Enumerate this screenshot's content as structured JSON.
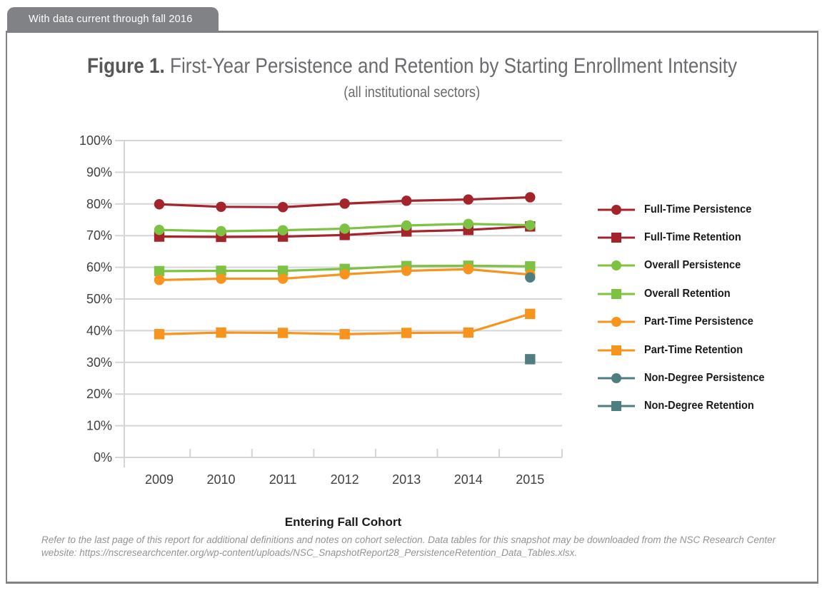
{
  "banner": {
    "text": "With data current through fall 2016"
  },
  "figure": {
    "label": "Figure 1.",
    "title": " First-Year Persistence and Retention by Starting Enrollment Intensity",
    "subtitle": "(all institutional sectors)"
  },
  "footnote": {
    "text": "Refer to the last page of this report for additional definitions and notes on cohort selection. Data tables for this snapshot may be downloaded from the NSC Research Center website: https://nscresearchcenter.org/wp-content/uploads/NSC_SnapshotReport28_PersistenceRetention_Data_Tables.xlsx."
  },
  "colors": {
    "dark_red": "#A4242C",
    "green": "#7DC242",
    "orange": "#F7941E",
    "teal": "#4E7E80",
    "gridline": "#D4D5D7",
    "banner_gray": "#808285"
  },
  "chart_data": {
    "type": "line",
    "title": "Figure 1. First-Year Persistence and Retention by Starting Enrollment Intensity (all institutional sectors)",
    "categories": [
      "2009",
      "2010",
      "2011",
      "2012",
      "2013",
      "2014",
      "2015"
    ],
    "xlabel": "Entering Fall Cohort",
    "ylabel": "",
    "ylim": [
      0,
      100
    ],
    "ytick_step": 10,
    "ytick_labels": [
      "0%",
      "10%",
      "20%",
      "30%",
      "40%",
      "50%",
      "60%",
      "70%",
      "80%",
      "90%",
      "100%"
    ],
    "grid": true,
    "legend_position": "right",
    "series": [
      {
        "name": "Full-Time Persistence",
        "marker": "circle",
        "color": "#A4242C",
        "values": [
          79.9,
          79.1,
          79.0,
          80.1,
          81.0,
          81.4,
          82.1
        ]
      },
      {
        "name": "Full-Time Retention",
        "marker": "square",
        "color": "#A4242C",
        "values": [
          69.7,
          69.6,
          69.7,
          70.2,
          71.3,
          71.8,
          72.9
        ]
      },
      {
        "name": "Overall Persistence",
        "marker": "circle",
        "color": "#7DC242",
        "values": [
          71.8,
          71.4,
          71.7,
          72.2,
          73.2,
          73.7,
          73.3
        ]
      },
      {
        "name": "Overall Retention",
        "marker": "square",
        "color": "#7DC242",
        "values": [
          58.8,
          58.9,
          58.9,
          59.5,
          60.4,
          60.5,
          60.3
        ]
      },
      {
        "name": "Part-Time Persistence",
        "marker": "circle",
        "color": "#F7941E",
        "values": [
          56.0,
          56.4,
          56.4,
          57.8,
          58.9,
          59.4,
          57.7
        ]
      },
      {
        "name": "Part-Time Retention",
        "marker": "square",
        "color": "#F7941E",
        "values": [
          38.9,
          39.4,
          39.3,
          38.9,
          39.3,
          39.4,
          45.3
        ]
      },
      {
        "name": "Non-Degree Persistence",
        "marker": "circle",
        "color": "#4E7E80",
        "values": [
          null,
          null,
          null,
          null,
          null,
          null,
          56.8
        ]
      },
      {
        "name": "Non-Degree Retention",
        "marker": "square",
        "color": "#4E7E80",
        "values": [
          null,
          null,
          null,
          null,
          null,
          null,
          31.0
        ]
      }
    ]
  }
}
